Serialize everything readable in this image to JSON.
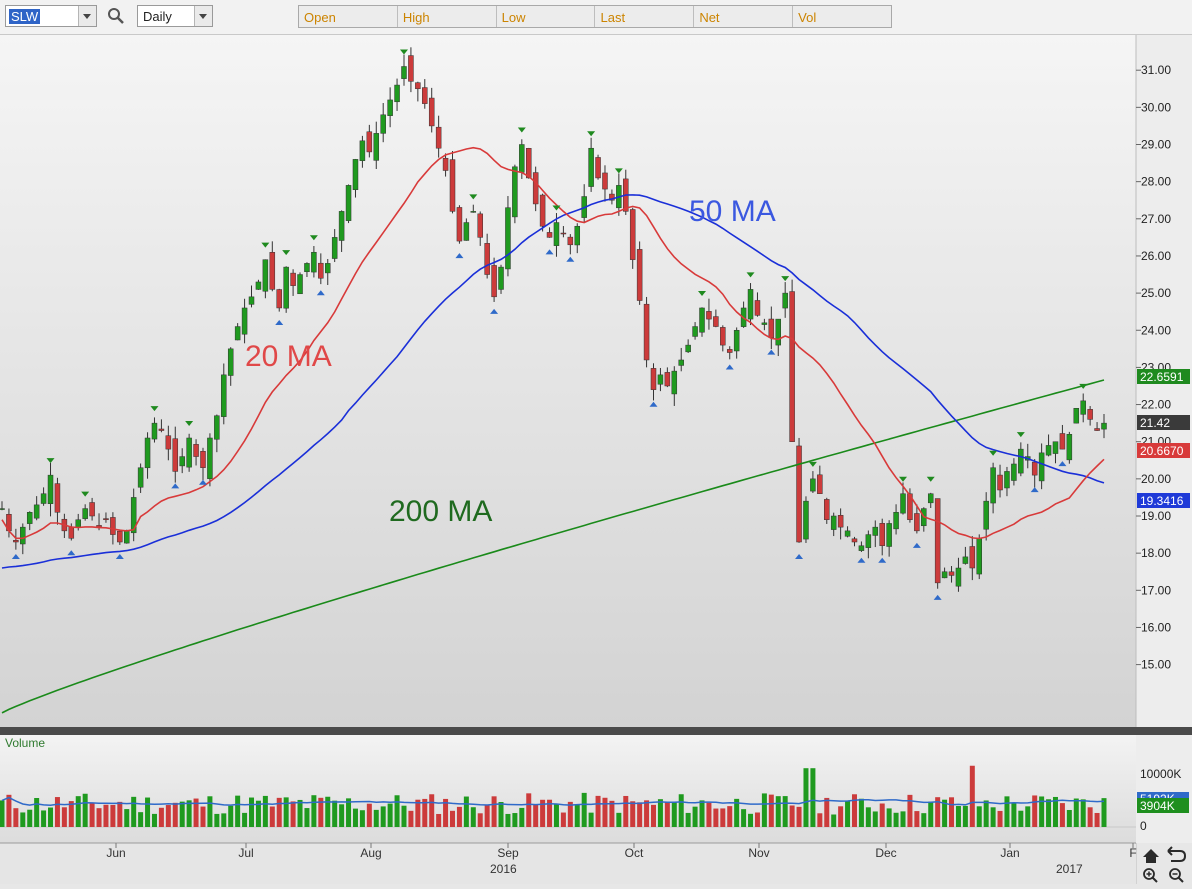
{
  "toolbar": {
    "symbol": "SLW",
    "period": "Daily",
    "quote_fields": [
      "Open",
      "High",
      "Low",
      "Last",
      "Net",
      "Vol"
    ]
  },
  "chart_data": {
    "type": "candlestick",
    "price_axis": {
      "ticks": [
        "31.00",
        "30.00",
        "29.00",
        "28.00",
        "27.00",
        "26.00",
        "25.00",
        "24.00",
        "23.00",
        "22.00",
        "21.00",
        "20.00",
        "19.00",
        "18.00",
        "17.00",
        "16.00",
        "15.00"
      ],
      "ylim": [
        13.7,
        31.8
      ]
    },
    "x_axis": {
      "months": [
        "Jun",
        "Jul",
        "Aug",
        "Sep",
        "Oct",
        "Nov",
        "Dec",
        "Jan",
        "F"
      ],
      "years": [
        "2016",
        "2017"
      ]
    },
    "annotations": {
      "ma20": "20 MA",
      "ma50": "50 MA",
      "ma200": "200 MA"
    },
    "price_labels": {
      "ma200": "22.6591",
      "last": "21.42",
      "ma20": "20.6670",
      "ma50": "19.3416"
    },
    "volume": {
      "title": "Volume",
      "ticks": [
        "10000K",
        "0"
      ],
      "labels": {
        "avg": "5192K",
        "last": "3904K"
      }
    },
    "colors": {
      "up": "#1f9a1f",
      "down": "#cc3b3b",
      "ma20": "#d83a3a",
      "ma50": "#1a2fd8",
      "ma200": "#1a8a1a"
    },
    "closes": [
      19.2,
      18.6,
      18.3,
      18.7,
      19.1,
      19.3,
      19.6,
      20.1,
      19.1,
      18.6,
      18.4,
      18.9,
      19.2,
      19.0,
      18.7,
      18.9,
      18.5,
      18.3,
      18.6,
      19.5,
      20.3,
      21.1,
      21.5,
      21.3,
      20.8,
      20.2,
      20.6,
      21.1,
      20.6,
      20.3,
      21.1,
      21.7,
      22.8,
      23.5,
      24.1,
      24.6,
      24.9,
      25.3,
      25.9,
      25.1,
      24.6,
      25.7,
      25.2,
      25.5,
      25.8,
      26.1,
      25.4,
      25.8,
      26.5,
      27.2,
      27.9,
      28.6,
      29.1,
      28.8,
      29.3,
      29.8,
      30.2,
      30.6,
      31.1,
      30.7,
      30.5,
      30.1,
      29.5,
      28.9,
      28.3,
      27.2,
      26.4,
      26.9,
      27.2,
      26.5,
      25.5,
      24.9,
      25.7,
      27.3,
      28.4,
      29.0,
      28.1,
      27.4,
      26.8,
      26.5,
      26.9,
      26.6,
      26.3,
      26.8,
      27.6,
      28.9,
      28.1,
      27.8,
      27.5,
      27.9,
      27.2,
      25.9,
      24.8,
      23.2,
      22.4,
      22.8,
      22.5,
      22.9,
      23.2,
      23.6,
      24.1,
      24.6,
      24.3,
      24.1,
      23.6,
      23.4,
      24.0,
      24.6,
      25.1,
      24.4,
      24.2,
      23.8,
      24.3,
      25.0,
      21.0,
      18.3,
      19.4,
      20.0,
      19.6,
      18.9,
      19.0,
      18.7,
      18.6,
      18.3,
      18.2,
      18.5,
      18.7,
      18.2,
      18.8,
      19.1,
      19.6,
      18.9,
      18.6,
      19.2,
      19.6,
      17.2,
      17.5,
      17.4,
      17.6,
      17.9,
      17.6,
      18.4,
      19.4,
      20.3,
      19.7,
      20.2,
      20.4,
      20.8,
      20.6,
      20.1,
      20.7,
      20.9,
      21.0,
      20.8,
      21.2,
      21.9,
      22.1,
      21.6,
      21.3,
      21.5
    ]
  }
}
